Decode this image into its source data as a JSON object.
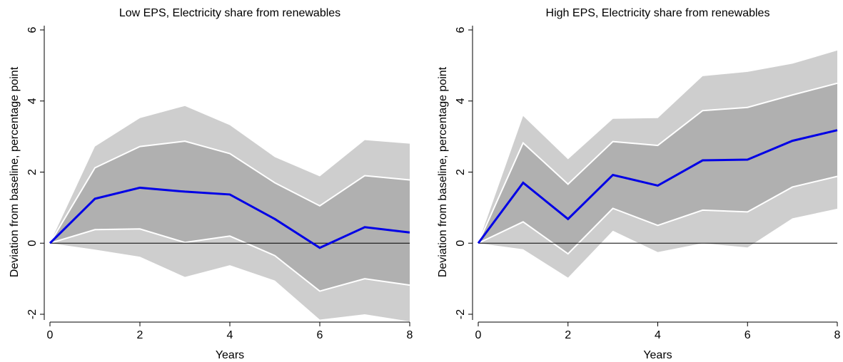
{
  "chart_data": [
    {
      "type": "line",
      "title": "Low EPS, Electricity share from renewables",
      "x_label": "Years",
      "y_label": "Deviation from baseline, percentage point",
      "x": [
        0,
        1,
        2,
        3,
        4,
        5,
        6,
        7,
        8
      ],
      "xlim": [
        0,
        8
      ],
      "xticks": [
        0,
        2,
        4,
        6,
        8
      ],
      "ylim": [
        -2,
        6
      ],
      "yticks": [
        -2,
        0,
        2,
        4,
        6
      ],
      "hline": 0,
      "bands": [
        {
          "color": "#cecece",
          "lower": [
            0,
            -0.18,
            -0.38,
            -0.95,
            -0.62,
            -1.05,
            -2.15,
            -2.0,
            -2.2
          ],
          "upper": [
            0,
            2.72,
            3.52,
            3.86,
            3.32,
            2.42,
            1.88,
            2.9,
            2.8
          ]
        },
        {
          "color": "#b0b0b0",
          "edge_color": "#ffffff",
          "lower": [
            0,
            0.38,
            0.4,
            0.02,
            0.2,
            -0.35,
            -1.35,
            -1.0,
            -1.18
          ],
          "upper": [
            0,
            2.12,
            2.72,
            2.87,
            2.52,
            1.7,
            1.05,
            1.9,
            1.78
          ]
        }
      ],
      "series": [
        {
          "color": "#0000e6",
          "values": [
            0,
            1.25,
            1.56,
            1.45,
            1.37,
            0.68,
            -0.13,
            0.45,
            0.3
          ]
        }
      ]
    },
    {
      "type": "line",
      "title": "High EPS, Electricity share from renewables",
      "x_label": "Years",
      "y_label": "Deviation from baseline, percentage point",
      "x": [
        0,
        1,
        2,
        3,
        4,
        5,
        6,
        7,
        8
      ],
      "xlim": [
        0,
        8
      ],
      "xticks": [
        0,
        2,
        4,
        6,
        8
      ],
      "ylim": [
        -2,
        6
      ],
      "yticks": [
        -2,
        0,
        2,
        4,
        6
      ],
      "hline": 0,
      "bands": [
        {
          "color": "#cecece",
          "lower": [
            0,
            -0.17,
            -0.97,
            0.35,
            -0.25,
            0,
            -0.12,
            0.7,
            0.97
          ],
          "upper": [
            0,
            3.58,
            2.36,
            3.5,
            3.52,
            4.7,
            4.82,
            5.05,
            5.42
          ]
        },
        {
          "color": "#b0b0b0",
          "edge_color": "#ffffff",
          "lower": [
            0,
            0.6,
            -0.3,
            0.98,
            0.5,
            0.93,
            0.88,
            1.58,
            1.88
          ],
          "upper": [
            0,
            2.82,
            1.66,
            2.86,
            2.75,
            3.73,
            3.82,
            4.17,
            4.5
          ]
        }
      ],
      "series": [
        {
          "color": "#0000e6",
          "values": [
            0,
            1.7,
            0.68,
            1.92,
            1.62,
            2.33,
            2.35,
            2.88,
            3.18
          ]
        }
      ]
    }
  ]
}
